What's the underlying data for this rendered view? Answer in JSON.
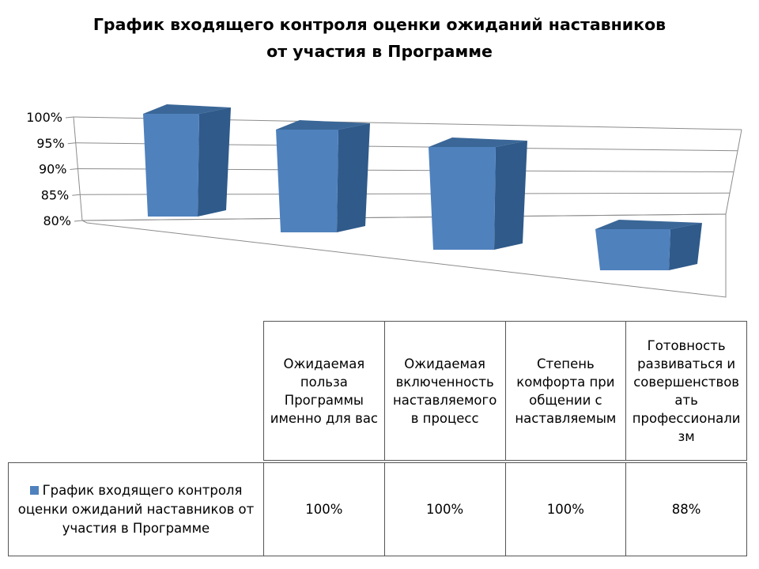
{
  "chart_data": {
    "type": "bar",
    "title_lines": [
      "График входящего контроля оценки ожиданий наставников",
      "от участия в Программе"
    ],
    "categories": [
      "Ожидаемая польза Программы именно для вас",
      "Ожидаемая включенность наставляемого в процесс",
      "Степень комфорта при общении с наставляемым",
      "Готовность развиваться и совершенствовать профессионализм"
    ],
    "series": [
      {
        "name": "График входящего контроля оценки ожиданий наставников от участия в Программе",
        "values": [
          100,
          100,
          100,
          88
        ],
        "value_labels": [
          "100%",
          "100%",
          "100%",
          "88%"
        ],
        "color": "#4f81bd"
      }
    ],
    "yticks": [
      "80%",
      "85%",
      "90%",
      "95%",
      "100%"
    ],
    "ylim": [
      80,
      100
    ],
    "grid": true,
    "legend": "data-table"
  }
}
